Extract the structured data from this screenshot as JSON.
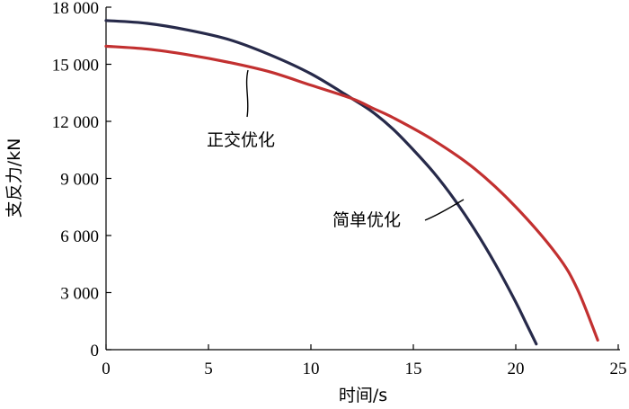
{
  "chart_data": {
    "type": "line",
    "xlabel": "时间/s",
    "ylabel": "支反力/kN",
    "xlim": [
      0,
      25
    ],
    "ylim": [
      0,
      18000
    ],
    "xticks": [
      0,
      5,
      10,
      15,
      20,
      25
    ],
    "xtick_labels": [
      "0",
      "5",
      "10",
      "15",
      "20",
      "25"
    ],
    "yticks": [
      0,
      3000,
      6000,
      9000,
      12000,
      15000,
      18000
    ],
    "ytick_labels": [
      "0",
      "3 000",
      "6 000",
      "9 000",
      "12 000",
      "15 000",
      "18 000"
    ],
    "grid": false,
    "series": [
      {
        "name": "简单优化",
        "color": "#272a4a",
        "x": [
          0,
          2,
          4,
          6,
          8,
          10,
          12,
          13,
          14,
          15,
          16,
          17,
          18,
          19,
          20,
          20.5,
          21
        ],
        "y": [
          17300,
          17150,
          16800,
          16300,
          15500,
          14500,
          13200,
          12500,
          11600,
          10500,
          9300,
          7900,
          6300,
          4500,
          2500,
          1400,
          300
        ]
      },
      {
        "name": "正交优化",
        "color": "#c23030",
        "x": [
          0,
          2,
          4,
          6,
          8,
          10,
          12,
          13,
          14,
          16,
          18,
          20,
          22,
          23,
          24
        ],
        "y": [
          15950,
          15800,
          15500,
          15100,
          14600,
          13900,
          13200,
          12700,
          12200,
          11000,
          9500,
          7500,
          5000,
          3200,
          500
        ]
      }
    ],
    "annotations": [
      {
        "text": "正交优化",
        "series": "正交优化"
      },
      {
        "text": "简单优化",
        "series": "简单优化"
      }
    ]
  }
}
